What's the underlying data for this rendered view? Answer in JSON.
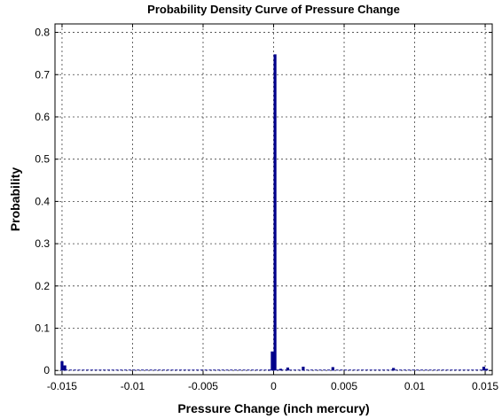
{
  "chart_data": {
    "type": "bar",
    "title": "Probability Density Curve of Pressure Change",
    "xlabel": "Pressure Change (inch mercury)",
    "ylabel": "Probability",
    "xlim": [
      -0.0155,
      0.0155
    ],
    "ylim": [
      -0.01,
      0.82
    ],
    "xticks": [
      -0.015,
      -0.01,
      -0.005,
      0,
      0.005,
      0.01,
      0.015
    ],
    "xtick_labels": [
      "-0.015",
      "-0.01",
      "-0.005",
      "0",
      "0.005",
      "0.01",
      "0.015"
    ],
    "yticks": [
      0,
      0.1,
      0.2,
      0.3,
      0.4,
      0.5,
      0.6,
      0.7,
      0.8
    ],
    "ytick_labels": [
      "0",
      "0.1",
      "0.2",
      "0.3",
      "0.4",
      "0.5",
      "0.6",
      "0.7",
      "0.8"
    ],
    "grid": true,
    "bar_width": 0.0002,
    "bar_color": "#00008B",
    "x": [
      -0.015,
      -0.0148,
      -0.0003,
      -0.0001,
      0.0001,
      0.0005,
      0.001,
      0.0021,
      0.0042,
      0.0085,
      0.0149,
      0.0151
    ],
    "values": [
      0.022,
      0.012,
      0.002,
      0.045,
      0.748,
      0.004,
      0.007,
      0.009,
      0.008,
      0.006,
      0.009,
      0.004
    ],
    "baseline_noise": 0.002
  }
}
